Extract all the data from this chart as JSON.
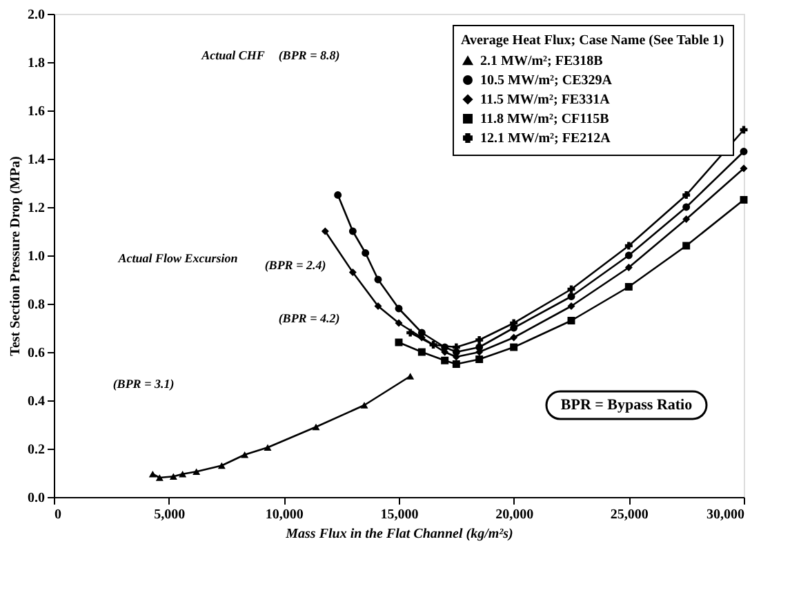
{
  "chart_data": {
    "type": "line",
    "xlabel": "Mass Flux in the Flat Channel (kg/m²s)",
    "ylabel": "Test Section Pressure Drop (MPa)",
    "legend_title": "Average Heat Flux; Case Name (See Table 1)",
    "legend": "top right",
    "grid": false,
    "line_style": "solid",
    "xlim": [
      0,
      30000
    ],
    "xticks": [
      {
        "value": 0,
        "label": "0"
      },
      {
        "value": 5000,
        "label": "5,000"
      },
      {
        "value": 10000,
        "label": "10,000"
      },
      {
        "value": 15000,
        "label": "15,000"
      },
      {
        "value": 20000,
        "label": "20,000"
      },
      {
        "value": 25000,
        "label": "25,000"
      },
      {
        "value": 30000,
        "label": "30,000"
      }
    ],
    "ylim": [
      0,
      2.0
    ],
    "yticks": [
      {
        "value": 0,
        "label": "0.0"
      },
      {
        "value": 0.2,
        "label": "0.2"
      },
      {
        "value": 0.4,
        "label": "0.4"
      },
      {
        "value": 0.6,
        "label": "0.6"
      },
      {
        "value": 0.8,
        "label": "0.8"
      },
      {
        "value": 1.0,
        "label": "1.0"
      },
      {
        "value": 1.2,
        "label": "1.2"
      },
      {
        "value": 1.4,
        "label": "1.4"
      },
      {
        "value": 1.6,
        "label": "1.6"
      },
      {
        "value": 1.8,
        "label": "1.8"
      },
      {
        "value": 2.0,
        "label": "2.0"
      }
    ],
    "series": [
      {
        "name": "2.1 MW/m²; FE318B",
        "color": "#000000",
        "marker": "triangle",
        "x": [
          4300,
          4600,
          5200,
          5600,
          6200,
          7300,
          8300,
          9300,
          11400,
          13500,
          15500
        ],
        "values": [
          0.095,
          0.08,
          0.085,
          0.095,
          0.105,
          0.13,
          0.175,
          0.205,
          0.29,
          0.38,
          0.5
        ]
      },
      {
        "name": "10.5 MW/m²; CE329A",
        "color": "#000000",
        "marker": "circle",
        "x": [
          12350,
          13000,
          13550,
          14100,
          15000,
          16000,
          17000,
          17500,
          18500,
          20000,
          22500,
          25000,
          27500,
          30000
        ],
        "values": [
          1.25,
          1.1,
          1.01,
          0.9,
          0.78,
          0.68,
          0.62,
          0.6,
          0.62,
          0.7,
          0.83,
          1.0,
          1.2,
          1.43
        ]
      },
      {
        "name": "11.5 MW/m²; FE331A",
        "color": "#000000",
        "marker": "diamond",
        "x": [
          11800,
          13000,
          14100,
          15000,
          16000,
          17000,
          17500,
          18500,
          20000,
          22500,
          25000,
          27500,
          30000
        ],
        "values": [
          1.1,
          0.93,
          0.79,
          0.72,
          0.66,
          0.6,
          0.58,
          0.6,
          0.66,
          0.79,
          0.95,
          1.15,
          1.36
        ]
      },
      {
        "name": "11.8 MW/m²; CF115B",
        "color": "#000000",
        "marker": "square",
        "x": [
          15000,
          16000,
          17000,
          17500,
          18500,
          20000,
          22500,
          25000,
          27500,
          30000
        ],
        "values": [
          0.64,
          0.6,
          0.565,
          0.55,
          0.57,
          0.62,
          0.73,
          0.87,
          1.04,
          1.23
        ]
      },
      {
        "name": "12.1 MW/m²; FE212A",
        "color": "#000000",
        "marker": "cross",
        "x": [
          15500,
          16500,
          17500,
          18500,
          20000,
          22500,
          25000,
          27500,
          30000
        ],
        "values": [
          0.68,
          0.63,
          0.62,
          0.65,
          0.72,
          0.86,
          1.04,
          1.25,
          1.52
        ]
      }
    ],
    "annotations": [
      "Actual CHF",
      "(BPR = 8.8)",
      "Actual Flow Excursion",
      "(BPR = 2.4)",
      "(BPR = 4.2)",
      "(BPR = 3.1)",
      "BPR = Bypass Ratio"
    ]
  }
}
